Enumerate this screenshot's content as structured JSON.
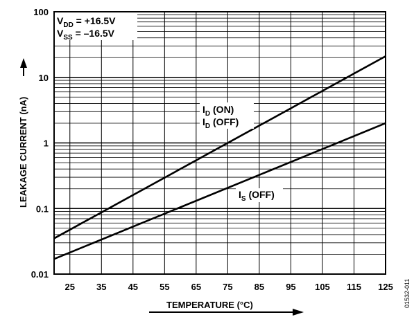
{
  "chart_data": {
    "type": "line",
    "xlabel": "TEMPERATURE (°C)",
    "ylabel": "LEAKAGE CURRENT (nA)",
    "xlim": [
      20,
      125
    ],
    "ylim": [
      0.01,
      100
    ],
    "y_scale": "log",
    "grid": true,
    "x_ticks": [
      "25",
      "35",
      "45",
      "55",
      "65",
      "75",
      "85",
      "95",
      "105",
      "115",
      "125"
    ],
    "y_ticks": [
      "0.01",
      "0.1",
      "1",
      "10",
      "100"
    ],
    "series": [
      {
        "name": "ID (ON) / ID (OFF)",
        "x": [
          20,
          125
        ],
        "y": [
          0.035,
          21
        ]
      },
      {
        "name": "IS (OFF)",
        "x": [
          20,
          125
        ],
        "y": [
          0.017,
          2
        ]
      }
    ],
    "annotations": {
      "vdd": {
        "main": "V",
        "sub": "DD",
        "rest": " = +16.5V"
      },
      "vss": {
        "main": "V",
        "sub": "SS",
        "rest": " = –16.5V"
      },
      "id_on": {
        "main": "I",
        "sub": "D",
        "rest": " (ON)"
      },
      "id_off": {
        "main": "I",
        "sub": "D",
        "rest": " (OFF)"
      },
      "is_off": {
        "main": "I",
        "sub": "S",
        "rest": " (OFF)"
      }
    },
    "figure_id": "01532-011"
  }
}
